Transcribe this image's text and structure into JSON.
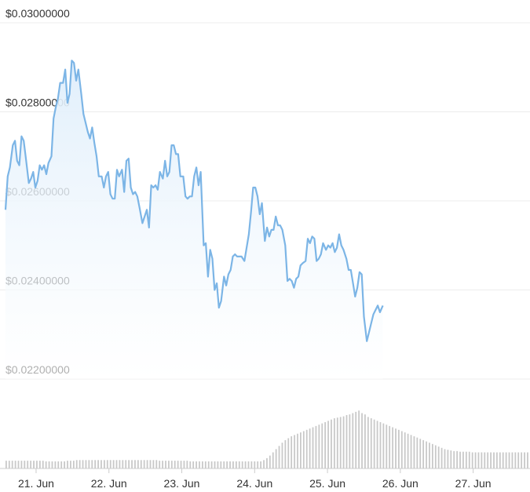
{
  "chart_data": {
    "type": "area",
    "colors": {
      "line": "#7cb5e6",
      "area_top": "#dfeefb",
      "volume": "#c8c8c8",
      "grid": "#ececec",
      "axis": "#cccccc"
    },
    "ylim": [
      0.022,
      0.03
    ],
    "y_ticks": [
      {
        "value": 0.03,
        "label": "$0.03000000"
      },
      {
        "value": 0.028,
        "label": "$0.02800000"
      },
      {
        "value": 0.026,
        "label": "$0.02600000"
      },
      {
        "value": 0.024,
        "label": "$0.02400000"
      },
      {
        "value": 0.022,
        "label": "$0.02200000"
      }
    ],
    "x_range": [
      20.58,
      27.78
    ],
    "x_ticks": [
      {
        "value": 21,
        "label": "21. Jun"
      },
      {
        "value": 22,
        "label": "22. Jun"
      },
      {
        "value": 23,
        "label": "23. Jun"
      },
      {
        "value": 24,
        "label": "24. Jun"
      },
      {
        "value": 25,
        "label": "25. Jun"
      },
      {
        "value": 26,
        "label": "26. Jun"
      },
      {
        "value": 27,
        "label": "27. Jun"
      }
    ],
    "price": [
      [
        20.58,
        0.0258
      ],
      [
        20.61,
        0.02655
      ],
      [
        20.64,
        0.02675
      ],
      [
        20.68,
        0.02725
      ],
      [
        20.71,
        0.02735
      ],
      [
        20.74,
        0.0269
      ],
      [
        20.77,
        0.0268
      ],
      [
        20.8,
        0.02745
      ],
      [
        20.83,
        0.02735
      ],
      [
        20.86,
        0.02695
      ],
      [
        20.9,
        0.0264
      ],
      [
        20.93,
        0.0265
      ],
      [
        20.96,
        0.02665
      ],
      [
        20.99,
        0.0263
      ],
      [
        21.02,
        0.02645
      ],
      [
        21.05,
        0.0268
      ],
      [
        21.08,
        0.0267
      ],
      [
        21.11,
        0.0268
      ],
      [
        21.14,
        0.0266
      ],
      [
        21.17,
        0.02685
      ],
      [
        21.21,
        0.027
      ],
      [
        21.24,
        0.02785
      ],
      [
        21.27,
        0.0281
      ],
      [
        21.3,
        0.0283
      ],
      [
        21.33,
        0.02865
      ],
      [
        21.37,
        0.02865
      ],
      [
        21.4,
        0.02895
      ],
      [
        21.43,
        0.0282
      ],
      [
        21.46,
        0.0284
      ],
      [
        21.49,
        0.02915
      ],
      [
        21.52,
        0.0291
      ],
      [
        21.55,
        0.0287
      ],
      [
        21.58,
        0.02895
      ],
      [
        21.62,
        0.0284
      ],
      [
        21.65,
        0.02795
      ],
      [
        21.68,
        0.02775
      ],
      [
        21.71,
        0.02755
      ],
      [
        21.74,
        0.0274
      ],
      [
        21.77,
        0.02765
      ],
      [
        21.8,
        0.0273
      ],
      [
        21.83,
        0.027
      ],
      [
        21.86,
        0.02655
      ],
      [
        21.9,
        0.02655
      ],
      [
        21.93,
        0.0263
      ],
      [
        21.96,
        0.02655
      ],
      [
        21.99,
        0.02665
      ],
      [
        22.02,
        0.02615
      ],
      [
        22.05,
        0.02605
      ],
      [
        22.08,
        0.02605
      ],
      [
        22.11,
        0.0267
      ],
      [
        22.14,
        0.02655
      ],
      [
        22.18,
        0.0267
      ],
      [
        22.21,
        0.0262
      ],
      [
        22.24,
        0.0269
      ],
      [
        22.27,
        0.02695
      ],
      [
        22.3,
        0.0263
      ],
      [
        22.33,
        0.02615
      ],
      [
        22.36,
        0.0262
      ],
      [
        22.39,
        0.0261
      ],
      [
        22.42,
        0.02585
      ],
      [
        22.46,
        0.0255
      ],
      [
        22.49,
        0.02565
      ],
      [
        22.52,
        0.0258
      ],
      [
        22.55,
        0.0254
      ],
      [
        22.58,
        0.02635
      ],
      [
        22.61,
        0.0263
      ],
      [
        22.64,
        0.02635
      ],
      [
        22.67,
        0.02625
      ],
      [
        22.7,
        0.02665
      ],
      [
        22.74,
        0.0265
      ],
      [
        22.77,
        0.0269
      ],
      [
        22.8,
        0.02655
      ],
      [
        22.83,
        0.02665
      ],
      [
        22.86,
        0.02725
      ],
      [
        22.89,
        0.02725
      ],
      [
        22.92,
        0.02705
      ],
      [
        22.95,
        0.02705
      ],
      [
        22.98,
        0.02655
      ],
      [
        23.02,
        0.02655
      ],
      [
        23.05,
        0.0261
      ],
      [
        23.08,
        0.02605
      ],
      [
        23.11,
        0.0261
      ],
      [
        23.14,
        0.0261
      ],
      [
        23.17,
        0.02655
      ],
      [
        23.2,
        0.02675
      ],
      [
        23.23,
        0.02635
      ],
      [
        23.26,
        0.02665
      ],
      [
        23.3,
        0.025
      ],
      [
        23.33,
        0.02505
      ],
      [
        23.36,
        0.0243
      ],
      [
        23.39,
        0.0249
      ],
      [
        23.42,
        0.0247
      ],
      [
        23.45,
        0.024
      ],
      [
        23.48,
        0.02415
      ],
      [
        23.51,
        0.0236
      ],
      [
        23.54,
        0.02375
      ],
      [
        23.58,
        0.0243
      ],
      [
        23.61,
        0.0241
      ],
      [
        23.64,
        0.02435
      ],
      [
        23.67,
        0.02445
      ],
      [
        23.7,
        0.02475
      ],
      [
        23.73,
        0.0248
      ],
      [
        23.76,
        0.02475
      ],
      [
        23.79,
        0.02475
      ],
      [
        23.82,
        0.02475
      ],
      [
        23.86,
        0.02465
      ],
      [
        23.89,
        0.02495
      ],
      [
        23.92,
        0.02525
      ],
      [
        23.95,
        0.02575
      ],
      [
        23.98,
        0.0263
      ],
      [
        24.01,
        0.0263
      ],
      [
        24.04,
        0.0261
      ],
      [
        24.07,
        0.0257
      ],
      [
        24.1,
        0.02595
      ],
      [
        24.14,
        0.0251
      ],
      [
        24.17,
        0.0254
      ],
      [
        24.2,
        0.0252
      ],
      [
        24.23,
        0.02535
      ],
      [
        24.26,
        0.02535
      ],
      [
        24.29,
        0.02565
      ],
      [
        24.32,
        0.02545
      ],
      [
        24.35,
        0.02545
      ],
      [
        24.38,
        0.02535
      ],
      [
        24.42,
        0.025
      ],
      [
        24.45,
        0.0242
      ],
      [
        24.48,
        0.02425
      ],
      [
        24.51,
        0.0242
      ],
      [
        24.54,
        0.02405
      ],
      [
        24.57,
        0.02425
      ],
      [
        24.6,
        0.0243
      ],
      [
        24.63,
        0.02455
      ],
      [
        24.66,
        0.0246
      ],
      [
        24.7,
        0.02465
      ],
      [
        24.73,
        0.02515
      ],
      [
        24.76,
        0.02505
      ],
      [
        24.79,
        0.0252
      ],
      [
        24.82,
        0.02515
      ],
      [
        24.85,
        0.02465
      ],
      [
        24.88,
        0.0247
      ],
      [
        24.91,
        0.0248
      ],
      [
        24.94,
        0.02505
      ],
      [
        24.98,
        0.0249
      ],
      [
        25.01,
        0.025
      ],
      [
        25.04,
        0.02495
      ],
      [
        25.07,
        0.02505
      ],
      [
        25.1,
        0.02485
      ],
      [
        25.13,
        0.02495
      ],
      [
        25.16,
        0.02525
      ],
      [
        25.19,
        0.025
      ],
      [
        25.22,
        0.0249
      ],
      [
        25.26,
        0.0247
      ],
      [
        25.29,
        0.02445
      ],
      [
        25.32,
        0.02445
      ],
      [
        25.35,
        0.02415
      ],
      [
        25.38,
        0.02385
      ],
      [
        25.41,
        0.02405
      ],
      [
        25.44,
        0.0244
      ],
      [
        25.47,
        0.02435
      ],
      [
        25.5,
        0.0234
      ],
      [
        25.54,
        0.02285
      ],
      [
        25.57,
        0.02305
      ],
      [
        25.6,
        0.02325
      ],
      [
        25.63,
        0.02345
      ],
      [
        25.66,
        0.02355
      ],
      [
        25.69,
        0.02365
      ],
      [
        25.72,
        0.0235
      ],
      [
        25.76,
        0.02365
      ]
    ],
    "volume": [
      0.12,
      0.12,
      0.12,
      0.12,
      0.12,
      0.12,
      0.12,
      0.12,
      0.12,
      0.12,
      0.12,
      0.12,
      0.12,
      0.11,
      0.11,
      0.11,
      0.11,
      0.11,
      0.11,
      0.11,
      0.12,
      0.12,
      0.12,
      0.13,
      0.13,
      0.13,
      0.13,
      0.13,
      0.13,
      0.13,
      0.13,
      0.13,
      0.13,
      0.13,
      0.13,
      0.13,
      0.13,
      0.13,
      0.13,
      0.13,
      0.13,
      0.13,
      0.13,
      0.13,
      0.13,
      0.13,
      0.13,
      0.13,
      0.13,
      0.13,
      0.12,
      0.12,
      0.12,
      0.12,
      0.12,
      0.12,
      0.12,
      0.12,
      0.12,
      0.12,
      0.11,
      0.11,
      0.11,
      0.11,
      0.11,
      0.11,
      0.11,
      0.11,
      0.11,
      0.11,
      0.11,
      0.11,
      0.11,
      0.11,
      0.11,
      0.11,
      0.11,
      0.11,
      0.11,
      0.11,
      0.11,
      0.11,
      0.11,
      0.11,
      0.13,
      0.16,
      0.2,
      0.25,
      0.3,
      0.35,
      0.4,
      0.44,
      0.47,
      0.5,
      0.52,
      0.54,
      0.56,
      0.58,
      0.6,
      0.62,
      0.64,
      0.66,
      0.68,
      0.7,
      0.72,
      0.74,
      0.76,
      0.78,
      0.79,
      0.8,
      0.81,
      0.83,
      0.84,
      0.86,
      0.88,
      0.9,
      0.86,
      0.84,
      0.8,
      0.78,
      0.76,
      0.74,
      0.72,
      0.7,
      0.68,
      0.66,
      0.64,
      0.62,
      0.6,
      0.58,
      0.56,
      0.54,
      0.52,
      0.5,
      0.48,
      0.46,
      0.44,
      0.42,
      0.4,
      0.38,
      0.36,
      0.34,
      0.32,
      0.3,
      0.29,
      0.28,
      0.27,
      0.27,
      0.26,
      0.26,
      0.26,
      0.26,
      0.25,
      0.25,
      0.25,
      0.25,
      0.25,
      0.25,
      0.25,
      0.25,
      0.25,
      0.25,
      0.25,
      0.25,
      0.25,
      0.25,
      0.25,
      0.25,
      0.25,
      0.25,
      0.25
    ],
    "grid": true,
    "legend": "none"
  }
}
